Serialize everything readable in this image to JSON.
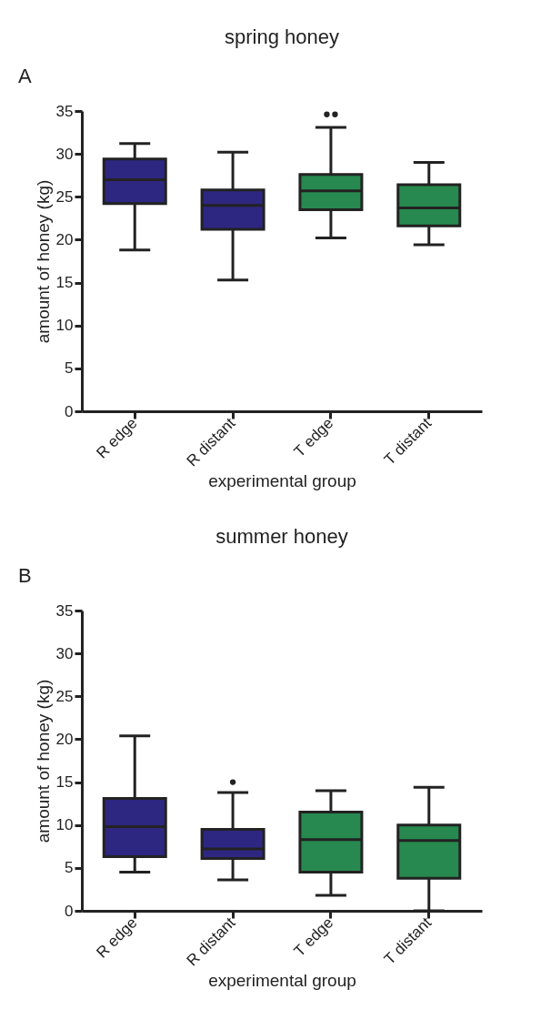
{
  "chart_data": [
    {
      "type": "box",
      "title": "spring honey",
      "xlabel": "experimental group",
      "ylabel": "amount of honey (kg)",
      "annotations": [
        "A"
      ],
      "categories": [
        "R edge",
        "R distant",
        "T edge",
        "T distant"
      ],
      "colors": [
        "#2e2782",
        "#2e2782",
        "#27894f",
        "#27894f"
      ],
      "boxes": [
        {
          "low": 18.8,
          "q1": 24.2,
          "median": 27.0,
          "q3": 29.4,
          "high": 31.2
        },
        {
          "low": 15.3,
          "q1": 21.2,
          "median": 24.0,
          "q3": 25.8,
          "high": 30.2
        },
        {
          "low": 20.2,
          "q1": 23.5,
          "median": 25.7,
          "q3": 27.6,
          "high": 33.1,
          "outliers": [
            34.6,
            34.6
          ]
        },
        {
          "low": 19.4,
          "q1": 21.6,
          "median": 23.7,
          "q3": 26.4,
          "high": 29.0
        }
      ],
      "ylim": [
        0,
        35
      ],
      "yticks": [
        0,
        5,
        10,
        15,
        20,
        25,
        30,
        35
      ],
      "grid": false
    },
    {
      "type": "box",
      "title": "summer honey",
      "xlabel": "experimental group",
      "ylabel": "amount of honey (kg)",
      "annotations": [
        "B"
      ],
      "categories": [
        "R edge",
        "R distant",
        "T edge",
        "T distant"
      ],
      "colors": [
        "#2e2782",
        "#2e2782",
        "#27894f",
        "#27894f"
      ],
      "boxes": [
        {
          "low": 4.5,
          "q1": 6.3,
          "median": 9.8,
          "q3": 13.1,
          "high": 20.4
        },
        {
          "low": 3.6,
          "q1": 6.1,
          "median": 7.2,
          "q3": 9.5,
          "high": 13.8,
          "outliers": [
            15.0
          ]
        },
        {
          "low": 1.8,
          "q1": 4.5,
          "median": 8.3,
          "q3": 11.5,
          "high": 14.0
        },
        {
          "low": 0,
          "q1": 3.8,
          "median": 8.2,
          "q3": 10.0,
          "high": 14.4
        }
      ],
      "ylim": [
        0,
        35
      ],
      "yticks": [
        0,
        5,
        10,
        15,
        20,
        25,
        30,
        35
      ],
      "grid": false
    }
  ]
}
